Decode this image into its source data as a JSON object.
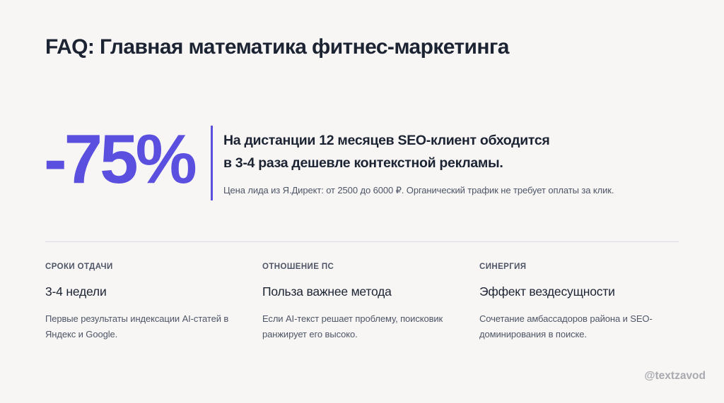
{
  "title": "FAQ: Главная математика фитнес-маркетинга",
  "highlight": {
    "value": "-75%",
    "headline_lines": [
      "На дистанции 12 месяцев SEO-клиент обходится",
      "в 3-4 раза дешевле контекстной рекламы."
    ],
    "note": "Цена лида из Я.Директ: от 2500 до 6000 ₽. Органический трафик не требует оплаты за клик."
  },
  "columns": [
    {
      "label": "СРОКИ ОТДАЧИ",
      "heading": "3-4 недели",
      "text_lines": [
        "Первые результаты индексации AI-статей в",
        "Яндекс и Google."
      ]
    },
    {
      "label": "ОТНОШЕНИЕ ПС",
      "heading": "Польза важнее метода",
      "text_lines": [
        "Если AI-текст решает проблему, поисковик",
        "ранжирует его высоко."
      ]
    },
    {
      "label": "СИНЕРГИЯ",
      "heading": "Эффект вездесущности",
      "text_lines": [
        "Сочетание амбассадоров района и SEO-",
        "доминирования в поиске."
      ]
    }
  ],
  "footer": {
    "handle": "@textzavod"
  },
  "colors": {
    "accent": "#5b4fe0",
    "text": "#1c2333",
    "muted": "#4d5566",
    "background": "#f7f6f4"
  }
}
